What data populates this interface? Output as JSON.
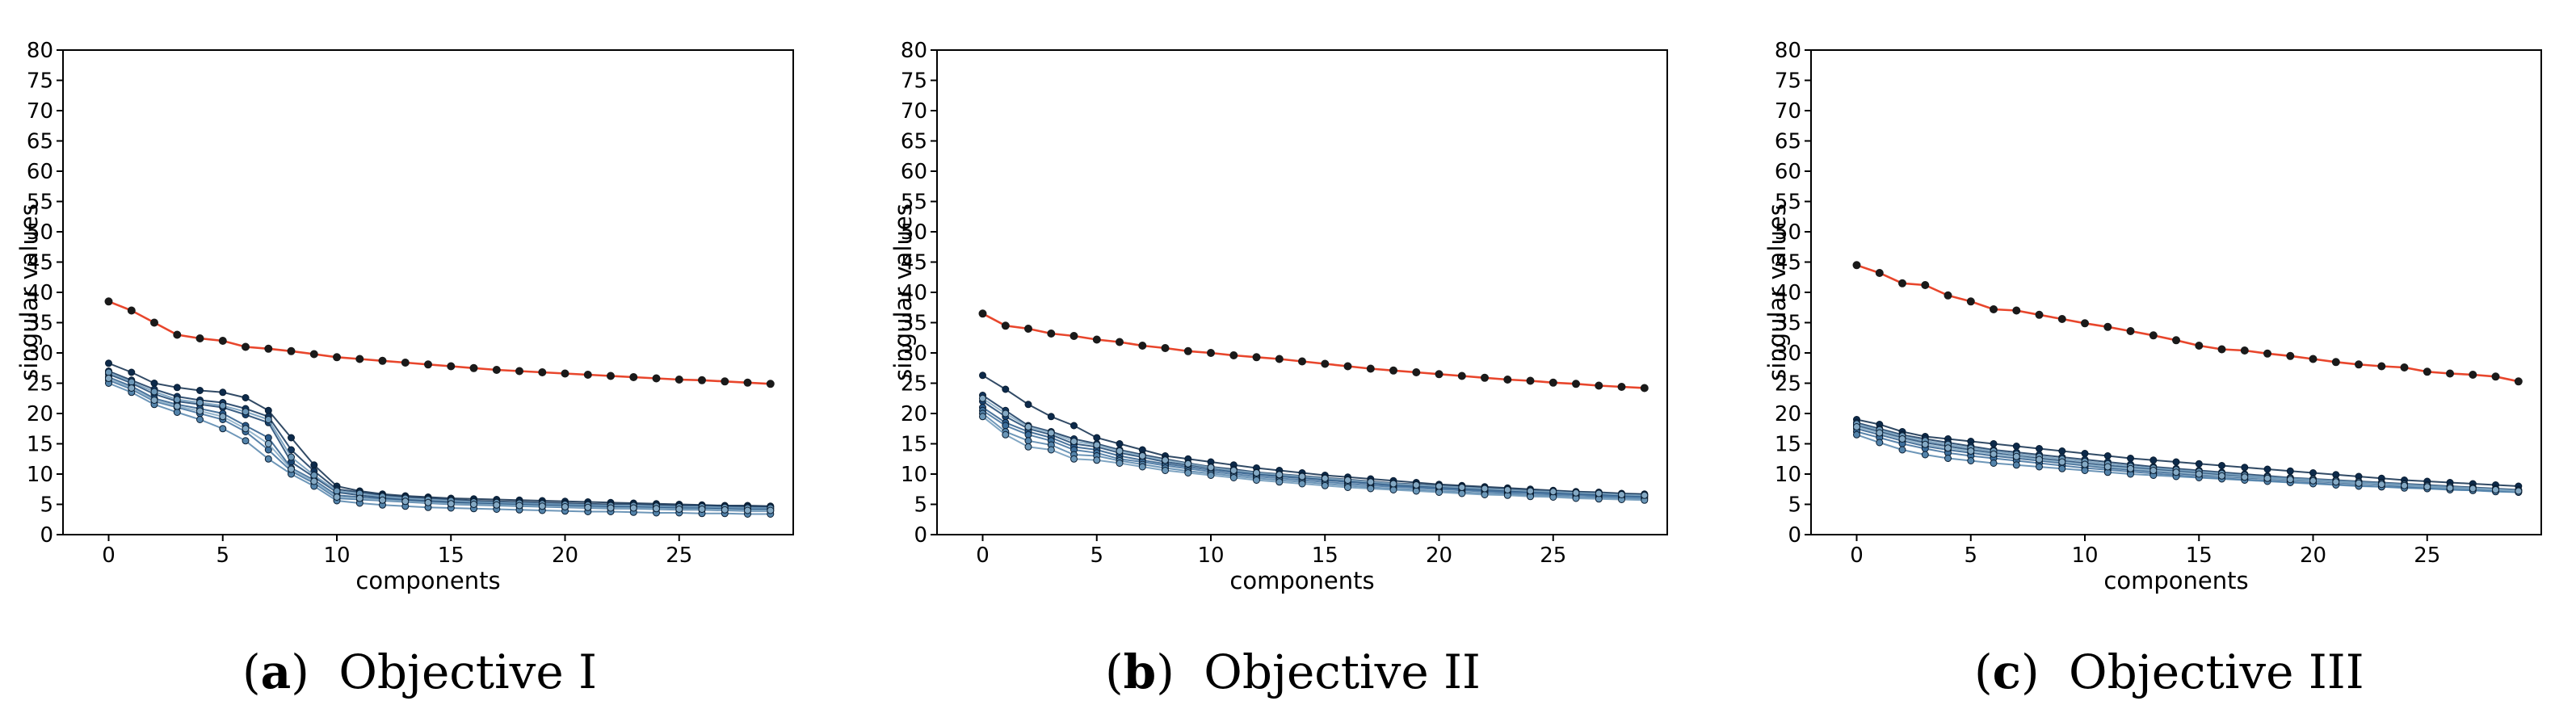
{
  "figure_caption_letters": [
    "a",
    "b",
    "c"
  ],
  "chart_data": [
    {
      "type": "line",
      "title": "",
      "caption_letter": "a",
      "caption_text": "Objective I",
      "xlabel": "components",
      "ylabel": "singular values",
      "xlim": [
        -2,
        30
      ],
      "ylim": [
        0,
        80
      ],
      "xticks": [
        0,
        5,
        10,
        15,
        20,
        25
      ],
      "yticks": [
        0,
        5,
        10,
        15,
        20,
        25,
        30,
        35,
        40,
        45,
        50,
        55,
        60,
        65,
        70,
        75,
        80
      ],
      "grid": false,
      "colors": {
        "highlight": "#e8462c",
        "series": [
          "#0d2a4a",
          "#12355c",
          "#1a4470",
          "#2a5a8a",
          "#3d6f9c",
          "#5484ab",
          "#6b97b8",
          "#84a9c4"
        ]
      },
      "series": [
        {
          "name": "highlight",
          "highlight": true,
          "values": [
            38.5,
            37.0,
            35.0,
            33.0,
            32.4,
            32.0,
            31.0,
            30.7,
            30.3,
            29.8,
            29.3,
            29.0,
            28.7,
            28.4,
            28.1,
            27.8,
            27.5,
            27.2,
            27.0,
            26.8,
            26.6,
            26.4,
            26.2,
            26.0,
            25.8,
            25.6,
            25.5,
            25.3,
            25.1,
            24.9
          ]
        },
        {
          "name": "s1",
          "values": [
            28.3,
            26.8,
            25.0,
            24.3,
            23.8,
            23.5,
            22.6,
            20.5,
            16.0,
            11.5,
            8.0,
            7.2,
            6.7,
            6.4,
            6.2,
            6.0,
            5.9,
            5.8,
            5.7,
            5.6,
            5.5,
            5.4,
            5.3,
            5.2,
            5.1,
            5.0,
            4.9,
            4.8,
            4.8,
            4.7
          ]
        },
        {
          "name": "s2",
          "values": [
            27.0,
            25.5,
            24.0,
            22.8,
            22.2,
            21.8,
            20.8,
            19.5,
            14.0,
            10.5,
            7.5,
            7.0,
            6.5,
            6.2,
            6.0,
            5.8,
            5.6,
            5.5,
            5.4,
            5.3,
            5.2,
            5.1,
            5.0,
            5.0,
            4.9,
            4.8,
            4.8,
            4.7,
            4.6,
            4.6
          ]
        },
        {
          "name": "s3",
          "values": [
            26.5,
            25.0,
            23.2,
            22.0,
            21.5,
            21.0,
            19.8,
            18.5,
            12.0,
            9.5,
            7.0,
            6.5,
            6.1,
            5.8,
            5.6,
            5.4,
            5.3,
            5.2,
            5.1,
            5.0,
            4.9,
            4.8,
            4.7,
            4.6,
            4.6,
            4.5,
            4.4,
            4.4,
            4.3,
            4.3
          ]
        },
        {
          "name": "s4",
          "values": [
            26.0,
            24.5,
            22.5,
            21.5,
            20.8,
            20.0,
            18.0,
            16.0,
            11.0,
            9.0,
            6.5,
            6.2,
            5.9,
            5.6,
            5.4,
            5.2,
            5.1,
            5.0,
            4.9,
            4.8,
            4.7,
            4.6,
            4.5,
            4.5,
            4.4,
            4.3,
            4.3,
            4.2,
            4.1,
            4.1
          ]
        },
        {
          "name": "s5",
          "values": [
            25.5,
            24.0,
            22.0,
            21.0,
            20.0,
            19.0,
            17.0,
            14.0,
            10.5,
            8.5,
            6.0,
            5.8,
            5.6,
            5.4,
            5.2,
            5.0,
            4.9,
            4.8,
            4.7,
            4.6,
            4.5,
            4.4,
            4.3,
            4.3,
            4.2,
            4.1,
            4.1,
            4.0,
            3.9,
            3.9
          ]
        },
        {
          "name": "s6",
          "values": [
            25.0,
            23.5,
            21.5,
            20.2,
            19.0,
            17.5,
            15.5,
            12.5,
            10.0,
            8.0,
            5.6,
            5.2,
            4.9,
            4.7,
            4.5,
            4.4,
            4.3,
            4.2,
            4.1,
            4.0,
            3.9,
            3.8,
            3.8,
            3.7,
            3.6,
            3.6,
            3.5,
            3.5,
            3.4,
            3.4
          ]
        },
        {
          "name": "s7",
          "values": [
            26.8,
            25.2,
            23.6,
            22.3,
            21.8,
            21.3,
            20.3,
            19.0,
            12.8,
            9.8,
            7.2,
            6.8,
            6.3,
            6.0,
            5.8,
            5.6,
            5.4,
            5.3,
            5.2,
            5.1,
            5.0,
            4.9,
            4.8,
            4.8,
            4.7,
            4.6,
            4.6,
            4.5,
            4.4,
            4.4
          ]
        },
        {
          "name": "s8",
          "values": [
            25.8,
            24.2,
            22.2,
            21.2,
            20.4,
            19.5,
            17.5,
            15.0,
            10.8,
            8.8,
            6.2,
            6.0,
            5.7,
            5.5,
            5.3,
            5.1,
            5.0,
            4.9,
            4.8,
            4.7,
            4.6,
            4.5,
            4.4,
            4.4,
            4.3,
            4.2,
            4.2,
            4.1,
            4.0,
            4.0
          ]
        }
      ]
    },
    {
      "type": "line",
      "title": "",
      "caption_letter": "b",
      "caption_text": "Objective II",
      "xlabel": "components",
      "ylabel": "singular values",
      "xlim": [
        -2,
        30
      ],
      "ylim": [
        0,
        80
      ],
      "xticks": [
        0,
        5,
        10,
        15,
        20,
        25
      ],
      "yticks": [
        0,
        5,
        10,
        15,
        20,
        25,
        30,
        35,
        40,
        45,
        50,
        55,
        60,
        65,
        70,
        75,
        80
      ],
      "grid": false,
      "colors": {
        "highlight": "#e8462c",
        "series": [
          "#0d2a4a",
          "#12355c",
          "#1a4470",
          "#2a5a8a",
          "#3d6f9c",
          "#5484ab",
          "#6b97b8",
          "#84a9c4"
        ]
      },
      "series": [
        {
          "name": "highlight",
          "highlight": true,
          "values": [
            36.5,
            34.5,
            34.0,
            33.2,
            32.8,
            32.2,
            31.8,
            31.2,
            30.8,
            30.3,
            30.0,
            29.6,
            29.3,
            29.0,
            28.6,
            28.2,
            27.8,
            27.4,
            27.1,
            26.8,
            26.5,
            26.2,
            25.9,
            25.6,
            25.4,
            25.1,
            24.9,
            24.6,
            24.4,
            24.2
          ]
        },
        {
          "name": "s1",
          "values": [
            26.3,
            24.0,
            21.5,
            19.5,
            18.0,
            16.0,
            15.0,
            14.0,
            13.0,
            12.5,
            12.0,
            11.5,
            11.0,
            10.6,
            10.2,
            9.8,
            9.5,
            9.2,
            8.9,
            8.6,
            8.3,
            8.1,
            7.9,
            7.7,
            7.5,
            7.3,
            7.1,
            7.0,
            6.8,
            6.7
          ]
        },
        {
          "name": "s2",
          "values": [
            23.0,
            20.5,
            18.0,
            17.0,
            15.8,
            15.0,
            14.0,
            13.2,
            12.5,
            11.8,
            11.2,
            10.8,
            10.3,
            10.0,
            9.7,
            9.4,
            9.1,
            8.8,
            8.5,
            8.3,
            8.1,
            7.9,
            7.7,
            7.5,
            7.3,
            7.2,
            7.0,
            6.9,
            6.7,
            6.6
          ]
        },
        {
          "name": "s3",
          "values": [
            22.0,
            19.5,
            17.5,
            16.5,
            15.0,
            14.5,
            13.5,
            12.8,
            12.0,
            11.5,
            11.0,
            10.5,
            10.1,
            9.8,
            9.5,
            9.2,
            8.9,
            8.6,
            8.3,
            8.1,
            7.9,
            7.7,
            7.5,
            7.3,
            7.1,
            7.0,
            6.8,
            6.7,
            6.5,
            6.4
          ]
        },
        {
          "name": "s4",
          "values": [
            21.0,
            18.5,
            17.0,
            16.0,
            14.5,
            14.0,
            13.0,
            12.3,
            11.7,
            11.2,
            10.7,
            10.3,
            9.9,
            9.6,
            9.3,
            9.0,
            8.7,
            8.4,
            8.1,
            7.9,
            7.7,
            7.5,
            7.3,
            7.1,
            7.0,
            6.8,
            6.7,
            6.5,
            6.4,
            6.3
          ]
        },
        {
          "name": "s5",
          "values": [
            20.5,
            18.0,
            16.5,
            15.5,
            14.0,
            13.5,
            12.5,
            12.0,
            11.4,
            10.9,
            10.4,
            10.0,
            9.6,
            9.3,
            9.0,
            8.7,
            8.4,
            8.1,
            7.9,
            7.7,
            7.5,
            7.3,
            7.1,
            6.9,
            6.8,
            6.6,
            6.5,
            6.3,
            6.2,
            6.1
          ]
        },
        {
          "name": "s6",
          "values": [
            20.0,
            17.0,
            15.5,
            14.8,
            13.2,
            13.0,
            12.2,
            11.6,
            11.0,
            10.5,
            10.1,
            9.7,
            9.3,
            9.0,
            8.7,
            8.4,
            8.1,
            7.8,
            7.6,
            7.4,
            7.2,
            7.0,
            6.8,
            6.7,
            6.5,
            6.4,
            6.2,
            6.1,
            6.0,
            5.9
          ]
        },
        {
          "name": "s7",
          "values": [
            19.5,
            16.5,
            14.5,
            14.0,
            12.5,
            12.3,
            11.8,
            11.2,
            10.6,
            10.2,
            9.8,
            9.4,
            9.0,
            8.7,
            8.4,
            8.1,
            7.8,
            7.6,
            7.4,
            7.2,
            7.0,
            6.8,
            6.6,
            6.5,
            6.3,
            6.2,
            6.0,
            5.9,
            5.8,
            5.7
          ]
        },
        {
          "name": "s8",
          "values": [
            22.5,
            20.0,
            17.8,
            16.8,
            15.4,
            14.8,
            13.8,
            13.0,
            12.3,
            11.7,
            11.1,
            10.6,
            10.2,
            9.9,
            9.6,
            9.3,
            9.0,
            8.7,
            8.4,
            8.2,
            8.0,
            7.8,
            7.6,
            7.4,
            7.2,
            7.1,
            6.9,
            6.8,
            6.6,
            6.5
          ]
        }
      ]
    },
    {
      "type": "line",
      "title": "",
      "caption_letter": "c",
      "caption_text": "Objective III",
      "xlabel": "components",
      "ylabel": "singular values",
      "xlim": [
        -2,
        30
      ],
      "ylim": [
        0,
        80
      ],
      "xticks": [
        0,
        5,
        10,
        15,
        20,
        25
      ],
      "yticks": [
        0,
        5,
        10,
        15,
        20,
        25,
        30,
        35,
        40,
        45,
        50,
        55,
        60,
        65,
        70,
        75,
        80
      ],
      "grid": false,
      "colors": {
        "highlight": "#e8462c",
        "series": [
          "#0d2a4a",
          "#12355c",
          "#1a4470",
          "#2a5a8a",
          "#3d6f9c",
          "#5484ab",
          "#6b97b8",
          "#84a9c4"
        ]
      },
      "series": [
        {
          "name": "highlight",
          "highlight": true,
          "values": [
            44.5,
            43.2,
            41.5,
            41.2,
            39.5,
            38.5,
            37.2,
            37.0,
            36.3,
            35.6,
            34.9,
            34.3,
            33.6,
            32.9,
            32.1,
            31.2,
            30.6,
            30.4,
            29.9,
            29.5,
            29.0,
            28.5,
            28.1,
            27.8,
            27.6,
            26.9,
            26.6,
            26.4,
            26.1,
            25.3
          ]
        },
        {
          "name": "s1",
          "values": [
            19.0,
            18.2,
            17.0,
            16.2,
            15.8,
            15.4,
            15.0,
            14.6,
            14.2,
            13.8,
            13.4,
            13.0,
            12.6,
            12.3,
            12.0,
            11.7,
            11.4,
            11.1,
            10.8,
            10.5,
            10.2,
            9.9,
            9.6,
            9.3,
            9.0,
            8.8,
            8.6,
            8.4,
            8.2,
            8.0
          ]
        },
        {
          "name": "s2",
          "values": [
            18.5,
            17.5,
            16.5,
            15.8,
            15.2,
            14.6,
            14.0,
            13.6,
            13.2,
            12.8,
            12.4,
            12.0,
            11.6,
            11.2,
            10.9,
            10.6,
            10.3,
            10.0,
            9.7,
            9.4,
            9.2,
            9.0,
            8.8,
            8.6,
            8.4,
            8.2,
            8.0,
            7.8,
            7.6,
            7.4
          ]
        },
        {
          "name": "s3",
          "values": [
            18.0,
            17.0,
            16.0,
            15.2,
            14.6,
            14.0,
            13.5,
            13.0,
            12.6,
            12.2,
            11.8,
            11.4,
            11.1,
            10.8,
            10.5,
            10.2,
            9.9,
            9.6,
            9.4,
            9.2,
            9.0,
            8.8,
            8.6,
            8.4,
            8.2,
            8.0,
            7.8,
            7.6,
            7.5,
            7.3
          ]
        },
        {
          "name": "s4",
          "values": [
            17.5,
            16.5,
            15.5,
            14.6,
            14.0,
            13.5,
            13.0,
            12.6,
            12.2,
            11.8,
            11.4,
            11.0,
            10.7,
            10.4,
            10.1,
            9.8,
            9.6,
            9.4,
            9.2,
            9.0,
            8.8,
            8.6,
            8.4,
            8.2,
            8.0,
            7.8,
            7.6,
            7.5,
            7.3,
            7.2
          ]
        },
        {
          "name": "s5",
          "values": [
            17.0,
            16.0,
            15.0,
            14.2,
            13.5,
            13.0,
            12.6,
            12.2,
            11.8,
            11.4,
            11.0,
            10.7,
            10.4,
            10.1,
            9.8,
            9.5,
            9.3,
            9.1,
            8.9,
            8.7,
            8.5,
            8.3,
            8.1,
            7.9,
            7.8,
            7.6,
            7.5,
            7.3,
            7.2,
            7.0
          ]
        },
        {
          "name": "s6",
          "values": [
            16.5,
            15.2,
            14.0,
            13.2,
            12.6,
            12.2,
            11.8,
            11.5,
            11.2,
            10.9,
            10.6,
            10.3,
            10.0,
            9.8,
            9.6,
            9.4,
            9.2,
            9.0,
            8.8,
            8.6,
            8.4,
            8.2,
            8.0,
            7.9,
            7.7,
            7.6,
            7.4,
            7.3,
            7.1,
            7.0
          ]
        },
        {
          "name": "s7",
          "values": [
            18.3,
            17.3,
            16.3,
            15.5,
            14.9,
            14.3,
            13.8,
            13.3,
            12.9,
            12.5,
            12.1,
            11.7,
            11.3,
            11.0,
            10.7,
            10.4,
            10.1,
            9.8,
            9.5,
            9.3,
            9.1,
            8.9,
            8.7,
            8.5,
            8.3,
            8.1,
            7.9,
            7.7,
            7.5,
            7.3
          ]
        },
        {
          "name": "s8",
          "values": [
            17.8,
            16.8,
            15.8,
            14.9,
            14.3,
            13.8,
            13.3,
            12.9,
            12.4,
            12.0,
            11.6,
            11.2,
            10.9,
            10.6,
            10.3,
            10.0,
            9.7,
            9.5,
            9.3,
            9.1,
            8.9,
            8.7,
            8.5,
            8.3,
            8.1,
            7.9,
            7.7,
            7.6,
            7.4,
            7.2
          ]
        }
      ]
    }
  ]
}
